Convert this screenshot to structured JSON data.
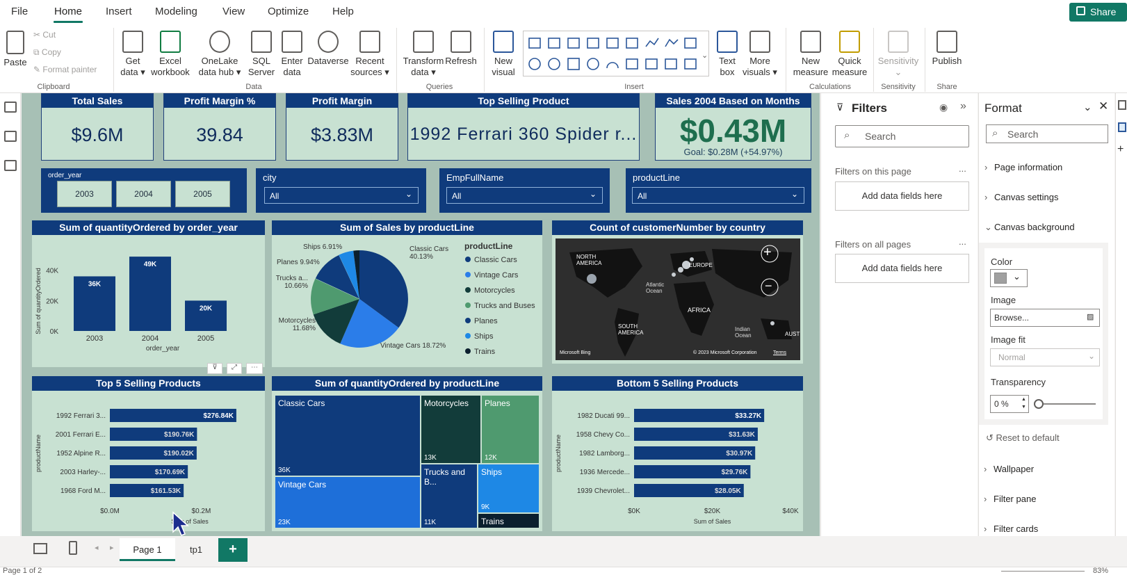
{
  "menu": {
    "items": [
      "File",
      "Home",
      "Insert",
      "Modeling",
      "View",
      "Optimize",
      "Help"
    ],
    "share": "Share"
  },
  "ribbon": {
    "clipboard": {
      "paste": "Paste",
      "cut": "Cut",
      "copy": "Copy",
      "format_painter": "Format painter",
      "group": "Clipboard"
    },
    "data": {
      "get_data": "Get data",
      "excel": "Excel workbook",
      "onelake": "OneLake data hub",
      "sql": "SQL Server",
      "enter": "Enter data",
      "dataverse": "Dataverse",
      "recent": "Recent sources",
      "group": "Data"
    },
    "queries": {
      "transform": "Transform data",
      "refresh": "Refresh",
      "group": "Queries"
    },
    "insert": {
      "new_visual": "New visual",
      "text_box": "Text box",
      "more_visuals": "More visuals",
      "group": "Insert"
    },
    "calculations": {
      "new_measure": "New measure",
      "quick_measure": "Quick measure",
      "group": "Calculations"
    },
    "sensitivity": {
      "label": "Sensitivity",
      "group": "Sensitivity"
    },
    "share": {
      "publish": "Publish",
      "group": "Share"
    }
  },
  "kpis": [
    {
      "title": "Total Sales",
      "value": "$9.6M"
    },
    {
      "title": "Profit Margin %",
      "value": "39.84"
    },
    {
      "title": "Profit Margin",
      "value": "$3.83M"
    },
    {
      "title": "Top Selling Product",
      "value": "1992 Ferrari 360 Spider r..."
    },
    {
      "title": "Sales 2004 Based on Months",
      "value": "$0.43M",
      "goal": "Goal: $0.28M (+54.97%)"
    }
  ],
  "slicers": {
    "order_year": {
      "label": "order_year",
      "options": [
        "2003",
        "2004",
        "2005"
      ]
    },
    "city": {
      "label": "city",
      "value": "All"
    },
    "emp": {
      "label": "EmpFullName",
      "value": "All"
    },
    "productline": {
      "label": "productLine",
      "value": "All"
    }
  },
  "bar_chart": {
    "title": "Sum of quantityOrdered by order_year",
    "ylabel": "Sum of quantityOrdered",
    "xlabel": "order_year",
    "yticks": [
      "40K",
      "20K",
      "0K"
    ],
    "categories": [
      "2003",
      "2004",
      "2005"
    ],
    "values": [
      36,
      49,
      20
    ],
    "labels": [
      "36K",
      "49K",
      "20K"
    ],
    "ymax": 55
  },
  "pie_chart": {
    "title": "Sum of Sales by productLine",
    "legend_title": "productLine",
    "legend": [
      "Classic Cars",
      "Vintage Cars",
      "Motorcycles",
      "Trucks and Buses",
      "Planes",
      "Ships",
      "Trains"
    ],
    "labels": {
      "classic": "Classic Cars 40.13%",
      "vintage": "Vintage Cars 18.72%",
      "motor": "Motorcycles 11.68%",
      "trucks": "Trucks a... 10.66%",
      "planes": "Planes 9.94%",
      "ships": "Ships 6.91%"
    }
  },
  "map": {
    "title": "Count of customerNumber by country",
    "labels": {
      "na": "NORTH AMERICA",
      "sa": "SOUTH AMERICA",
      "eu": "EUROPE",
      "af": "AFRICA",
      "atl": "Atlantic Ocean",
      "ind": "Indian Ocean",
      "au": "AUST"
    },
    "credit": "Microsoft Bing",
    "copyright": "© 2023 Microsoft Corporation",
    "terms": "Terms"
  },
  "top5": {
    "title": "Top 5 Selling Products",
    "ylabel": "productName",
    "xlabel": "Sum of Sales",
    "xticks": [
      "$0.0M",
      "$0.2M"
    ],
    "items": [
      {
        "name": "1992 Ferrari 3...",
        "value": "$276.84K",
        "v": 276.84
      },
      {
        "name": "2001 Ferrari E...",
        "value": "$190.76K",
        "v": 190.76
      },
      {
        "name": "1952 Alpine R...",
        "value": "$190.02K",
        "v": 190.02
      },
      {
        "name": "2003 Harley-...",
        "value": "$170.69K",
        "v": 170.69
      },
      {
        "name": "1968 Ford M...",
        "value": "$161.53K",
        "v": 161.53
      }
    ]
  },
  "treemap": {
    "title": "Sum of quantityOrdered by productLine",
    "items": [
      {
        "name": "Classic Cars",
        "value": "36K"
      },
      {
        "name": "Vintage Cars",
        "value": "23K"
      },
      {
        "name": "Motorcycles",
        "value": "13K"
      },
      {
        "name": "Trucks and B...",
        "value": "11K"
      },
      {
        "name": "Planes",
        "value": "12K"
      },
      {
        "name": "Ships",
        "value": "9K"
      },
      {
        "name": "Trains",
        "value": ""
      }
    ]
  },
  "bottom5": {
    "title": "Bottom 5 Selling Products",
    "ylabel": "productName",
    "xlabel": "Sum of Sales",
    "xticks": [
      "$0K",
      "$20K",
      "$40K"
    ],
    "items": [
      {
        "name": "1982 Ducati 99...",
        "value": "$33.27K",
        "v": 33.27
      },
      {
        "name": "1958 Chevy Co...",
        "value": "$31.63K",
        "v": 31.63
      },
      {
        "name": "1982 Lamborg...",
        "value": "$30.97K",
        "v": 30.97
      },
      {
        "name": "1936 Mercede...",
        "value": "$29.76K",
        "v": 29.76
      },
      {
        "name": "1939 Chevrolet...",
        "value": "$28.05K",
        "v": 28.05
      }
    ]
  },
  "filters": {
    "title": "Filters",
    "search": "Search",
    "on_page": "Filters on this page",
    "on_all": "Filters on all pages",
    "add": "Add data fields here",
    "more": "..."
  },
  "format": {
    "title": "Format",
    "search": "Search",
    "sections": [
      "Page information",
      "Canvas settings",
      "Canvas background",
      "Wallpaper",
      "Filter pane",
      "Filter cards"
    ],
    "color": "Color",
    "image": "Image",
    "browse": "Browse...",
    "image_fit": "Image fit",
    "fit_value": "Normal",
    "transparency": "Transparency",
    "transparency_value": "0 %",
    "reset": "Reset to default"
  },
  "pages": {
    "tabs": [
      "Page 1",
      "tp1"
    ],
    "add": "+"
  },
  "status": {
    "page": "Page 1 of 2",
    "zoom": "83%"
  }
}
